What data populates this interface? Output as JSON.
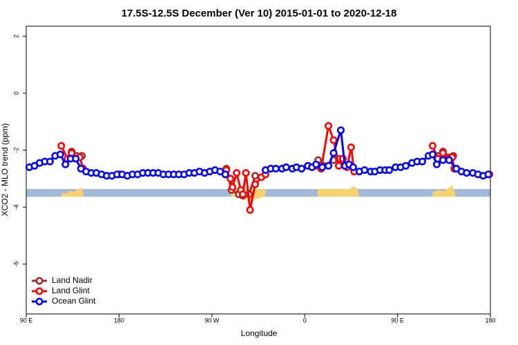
{
  "chart_data": {
    "type": "line",
    "title": "17.5S-12.5S December (Ver 10)   2015-01-01 to 2020-12-18",
    "x_label": "Longitude",
    "y_label": "XCO2 - MLO trend (ppm)",
    "xlim": [
      90,
      540
    ],
    "xticks": [
      {
        "value": 90,
        "label": "90 E"
      },
      {
        "value": 180,
        "label": "180"
      },
      {
        "value": 270,
        "label": "90 W"
      },
      {
        "value": 360,
        "label": "0"
      },
      {
        "value": 450,
        "label": "90 E"
      },
      {
        "value": 540,
        "label": "180"
      }
    ],
    "ylim": [
      -7.75,
      2.35
    ],
    "yticks": [
      2,
      0,
      -2,
      -4,
      -6
    ],
    "legend": "bottom-left",
    "series": [
      {
        "name": "Land Nadir",
        "color": "#a52a2a",
        "x": [
          134,
          139,
          144,
          200,
          284,
          289,
          296,
          300,
          306,
          312,
          340,
          373,
          378,
          388,
          393,
          398,
          402,
          450,
          489,
          494,
          499,
          504
        ],
        "values": [
          -2.05,
          -2.2,
          -2.2,
          null,
          -2.65,
          -3.4,
          -3.55,
          -3.6,
          -3.55,
          -2.9,
          null,
          -2.35,
          -2.55,
          -2.35,
          -2.3,
          -2.5,
          -2.55,
          null,
          -2.2,
          -2.05,
          -2.25,
          -2.2
        ]
      },
      {
        "name": "Land Glint",
        "color": "#ff0000",
        "x": [
          124,
          130,
          134,
          138,
          142,
          145,
          160,
          180,
          250,
          284,
          288,
          290,
          294,
          298,
          300,
          303,
          307,
          312,
          318,
          322,
          340,
          371,
          376,
          383,
          388,
          393,
          397,
          401,
          405,
          408,
          450,
          484,
          489,
          494,
          499,
          503,
          505,
          520,
          539
        ],
        "values": [
          -1.85,
          -2.3,
          -2.1,
          -2.3,
          -2.25,
          -2.65,
          null,
          -2.85,
          null,
          -2.7,
          -3.0,
          -3.3,
          -2.8,
          -3.4,
          -3.55,
          -2.8,
          -4.1,
          -3.2,
          -2.95,
          -2.85,
          null,
          -2.55,
          -2.65,
          -1.15,
          -1.65,
          -2.55,
          -2.3,
          -2.6,
          -1.9,
          -2.75,
          null,
          -1.85,
          -2.3,
          -2.1,
          -2.3,
          -2.25,
          -2.65,
          null,
          -2.85
        ]
      },
      {
        "name": "Ocean Glint",
        "color": "#0000ff",
        "x": [
          93,
          98,
          103,
          108,
          113,
          118,
          123,
          128,
          133,
          138,
          143,
          148,
          153,
          158,
          163,
          168,
          173,
          178,
          183,
          188,
          193,
          198,
          203,
          208,
          213,
          218,
          223,
          228,
          233,
          238,
          243,
          248,
          253,
          258,
          263,
          268,
          273,
          278,
          283,
          300,
          322,
          327,
          332,
          338,
          342,
          348,
          352,
          357,
          363,
          367,
          371,
          377,
          383,
          388,
          395,
          399,
          403,
          407,
          413,
          418,
          424,
          428,
          433,
          438,
          442,
          448,
          453,
          458,
          464,
          469,
          474,
          480,
          484,
          488,
          494,
          500,
          507,
          512,
          517,
          523,
          528,
          533,
          538
        ],
        "values": [
          -2.6,
          -2.55,
          -2.45,
          -2.4,
          -2.4,
          -2.2,
          -2.15,
          -2.5,
          -2.3,
          -2.3,
          -2.65,
          -2.75,
          -2.8,
          -2.8,
          -2.85,
          -2.9,
          -2.9,
          -2.85,
          -2.85,
          -2.9,
          -2.85,
          -2.85,
          -2.8,
          -2.8,
          -2.8,
          -2.8,
          -2.85,
          -2.85,
          -2.85,
          -2.85,
          -2.85,
          -2.8,
          -2.8,
          -2.75,
          -2.8,
          -2.75,
          -2.7,
          -2.75,
          -2.85,
          null,
          -2.7,
          -2.65,
          -2.65,
          -2.65,
          -2.6,
          -2.65,
          -2.6,
          -2.65,
          -2.55,
          -2.6,
          -2.5,
          -2.6,
          -2.55,
          -2.1,
          -1.3,
          -2.55,
          -2.5,
          -2.6,
          -2.75,
          -2.7,
          -2.75,
          -2.75,
          -2.7,
          -2.7,
          -2.7,
          -2.6,
          -2.6,
          -2.55,
          -2.45,
          -2.4,
          -2.4,
          -2.2,
          -2.15,
          -2.5,
          -2.35,
          -2.35,
          -2.65,
          -2.75,
          -2.8,
          -2.8,
          -2.85,
          -2.9,
          -2.85
        ]
      }
    ]
  }
}
